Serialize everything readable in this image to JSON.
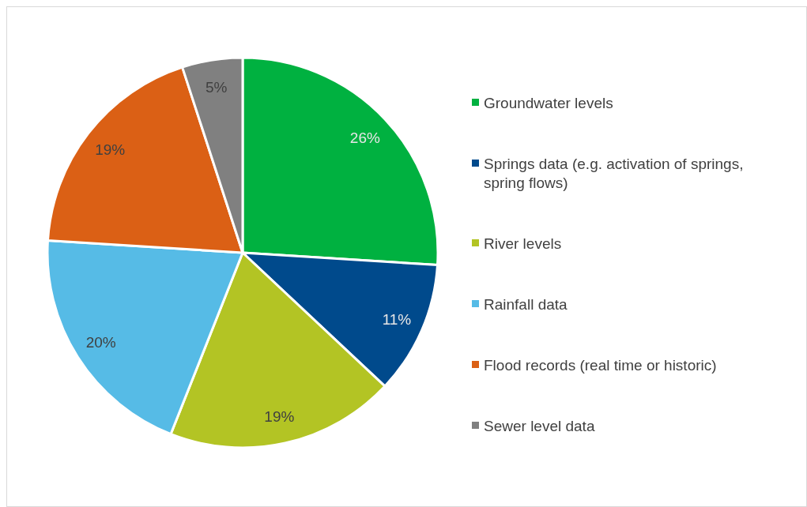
{
  "chart_data": {
    "type": "pie",
    "categories": [
      "Groundwater levels",
      "Springs data (e.g. activation of springs, spring flows)",
      "River levels",
      "Rainfall data",
      "Flood records (real time or historic)",
      "Sewer level data"
    ],
    "values": [
      26,
      11,
      19,
      20,
      19,
      5
    ],
    "colors": [
      "#00b140",
      "#004a8c",
      "#b3c424",
      "#56bbe6",
      "#db6015",
      "#808080"
    ],
    "value_labels": [
      "26%",
      "11%",
      "19%",
      "20%",
      "19%",
      "5%"
    ],
    "legend": "right"
  }
}
